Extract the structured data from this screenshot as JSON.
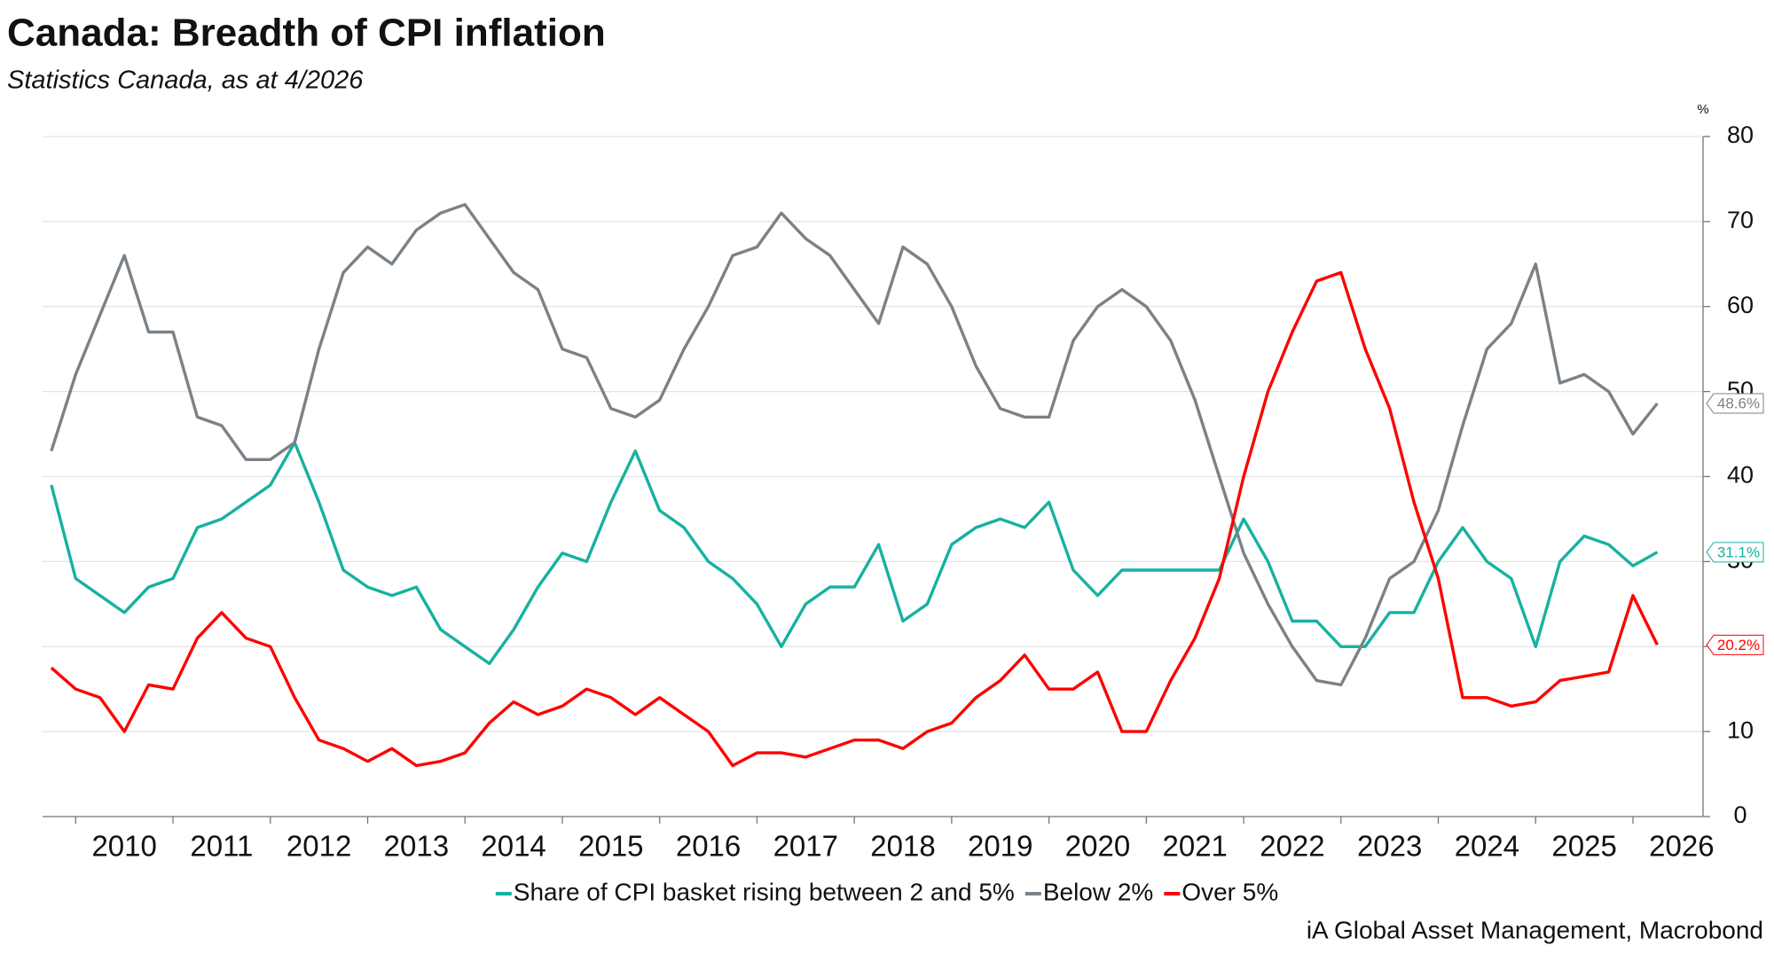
{
  "chart_data": {
    "type": "line",
    "title": "Canada: Breadth of CPI inflation",
    "subtitle": "Statistics Canada, as at 4/2026",
    "source": "iA Global Asset Management, Macrobond",
    "y_unit": "%",
    "x": [
      2009.75,
      2010,
      2010.25,
      2010.5,
      2010.75,
      2011,
      2011.25,
      2011.5,
      2011.75,
      2012,
      2012.25,
      2012.5,
      2012.75,
      2013,
      2013.25,
      2013.5,
      2013.75,
      2014,
      2014.25,
      2014.5,
      2014.75,
      2015,
      2015.25,
      2015.5,
      2015.75,
      2016,
      2016.25,
      2016.5,
      2016.75,
      2017,
      2017.25,
      2017.5,
      2017.75,
      2018,
      2018.25,
      2018.5,
      2018.75,
      2019,
      2019.25,
      2019.5,
      2019.75,
      2020,
      2020.25,
      2020.5,
      2020.75,
      2021,
      2021.25,
      2021.5,
      2021.75,
      2022,
      2022.25,
      2022.5,
      2022.75,
      2023,
      2023.25,
      2023.5,
      2023.75,
      2024,
      2024.25,
      2024.5,
      2024.75,
      2025,
      2025.25,
      2025.5,
      2025.75,
      2026,
      2026.25
    ],
    "series": [
      {
        "name": "Share of CPI basket rising between 2 and 5%",
        "color": "#17b1a0",
        "end_label": "31.1%",
        "values": [
          39,
          28,
          26,
          24,
          27,
          28,
          34,
          35,
          37,
          39,
          44,
          37,
          29,
          27,
          26,
          27,
          22,
          20,
          18,
          22,
          27,
          31,
          30,
          37,
          43,
          36,
          34,
          30,
          28,
          25,
          20,
          25,
          27,
          27,
          32,
          23,
          25,
          32,
          34,
          35,
          34,
          37,
          29,
          26,
          29,
          29,
          29,
          29,
          29,
          35,
          30,
          23,
          23,
          20,
          20,
          24,
          24,
          30,
          34,
          30,
          28,
          20,
          30,
          33,
          32,
          29.5,
          31.1
        ]
      },
      {
        "name": "Below 2%",
        "color": "#7a8288",
        "end_label": "48.6%",
        "values": [
          43,
          52,
          59,
          66,
          57,
          57,
          47,
          46,
          42,
          42,
          44,
          55,
          64,
          67,
          65,
          69,
          71,
          72,
          68,
          64,
          62,
          55,
          54,
          48,
          47,
          49,
          55,
          60,
          66,
          67,
          71,
          68,
          66,
          62,
          58,
          67,
          65,
          60,
          53,
          48,
          47,
          47,
          56,
          60,
          62,
          60,
          56,
          49,
          40,
          31,
          25,
          20,
          16,
          15.5,
          21,
          28,
          30,
          36,
          46,
          55,
          58,
          65,
          51,
          52,
          50,
          45,
          48.6
        ]
      },
      {
        "name": "Over 5%",
        "color": "#ff0000",
        "end_label": "20.2%",
        "values": [
          17.5,
          15,
          14,
          10,
          15.5,
          15,
          21,
          24,
          21,
          20,
          14,
          9,
          8,
          6.5,
          8,
          6,
          6.5,
          7.5,
          11,
          13.5,
          12,
          13,
          15,
          14,
          12,
          14,
          12,
          10,
          6,
          7.5,
          7.5,
          7,
          8,
          9,
          9,
          8,
          10,
          11,
          14,
          16,
          19,
          15,
          15,
          17,
          10,
          10,
          16,
          21,
          28,
          40,
          50,
          57,
          63,
          64,
          55,
          48,
          37,
          28,
          14,
          14,
          13,
          13.5,
          16,
          16.5,
          17,
          26,
          20.2
        ]
      }
    ],
    "xlim": [
      2009.66,
      2026.72
    ],
    "xticks": [
      2010,
      2011,
      2012,
      2013,
      2014,
      2015,
      2016,
      2017,
      2018,
      2019,
      2020,
      2021,
      2022,
      2023,
      2024,
      2025,
      2026
    ],
    "ylim": [
      0,
      80
    ],
    "yticks": [
      0,
      10,
      20,
      30,
      40,
      50,
      60,
      70,
      80
    ],
    "grid": true
  }
}
